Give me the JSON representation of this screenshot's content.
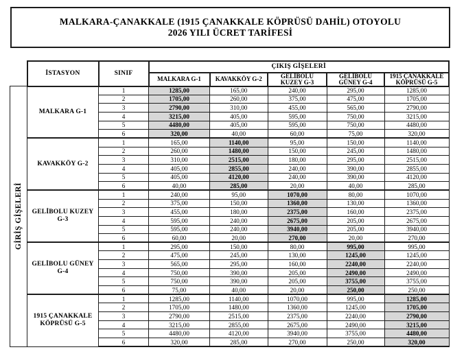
{
  "title": {
    "line1": "MALKARA-ÇANAKKALE (1915 ÇANAKKALE KÖPRÜSÜ DAHİL) OTOYOLU",
    "line2": "2026 YILI ÜCRET TARİFESİ"
  },
  "table": {
    "row_axis_label": "GİRİŞ GİŞELERİ",
    "station_col_header": "İSTASYON",
    "class_col_header": "SINIF",
    "exit_group_header": "ÇIKIŞ GİŞELERİ",
    "exit_col_headers": [
      "MALKARA G-1",
      "KAVAKKÖY G-2",
      "GELİBOLU\nKUZEY G-3",
      "GELİBOLU\nGÜNEY G-4",
      "1915 ÇANAKKALE\nKÖPRÜSÜ G-5"
    ],
    "classes": [
      "1",
      "2",
      "3",
      "4",
      "5",
      "6"
    ],
    "blocks": [
      {
        "station": "MALKARA G-1",
        "highlight_col": 0,
        "fares": [
          [
            "1285,00",
            "165,00",
            "240,00",
            "295,00",
            "1285,00"
          ],
          [
            "1705,00",
            "260,00",
            "375,00",
            "475,00",
            "1705,00"
          ],
          [
            "2790,00",
            "310,00",
            "455,00",
            "565,00",
            "2790,00"
          ],
          [
            "3215,00",
            "405,00",
            "595,00",
            "750,00",
            "3215,00"
          ],
          [
            "4480,00",
            "405,00",
            "595,00",
            "750,00",
            "4480,00"
          ],
          [
            "320,00",
            "40,00",
            "60,00",
            "75,00",
            "320,00"
          ]
        ]
      },
      {
        "station": "KAVAKKÖY G-2",
        "highlight_col": 1,
        "fares": [
          [
            "165,00",
            "1140,00",
            "95,00",
            "150,00",
            "1140,00"
          ],
          [
            "260,00",
            "1480,00",
            "150,00",
            "245,00",
            "1480,00"
          ],
          [
            "310,00",
            "2515,00",
            "180,00",
            "295,00",
            "2515,00"
          ],
          [
            "405,00",
            "2855,00",
            "240,00",
            "390,00",
            "2855,00"
          ],
          [
            "405,00",
            "4120,00",
            "240,00",
            "390,00",
            "4120,00"
          ],
          [
            "40,00",
            "285,00",
            "20,00",
            "40,00",
            "285,00"
          ]
        ]
      },
      {
        "station": "GELİBOLU KUZEY\nG-3",
        "highlight_col": 2,
        "fares": [
          [
            "240,00",
            "95,00",
            "1070,00",
            "80,00",
            "1070,00"
          ],
          [
            "375,00",
            "150,00",
            "1360,00",
            "130,00",
            "1360,00"
          ],
          [
            "455,00",
            "180,00",
            "2375,00",
            "160,00",
            "2375,00"
          ],
          [
            "595,00",
            "240,00",
            "2675,00",
            "205,00",
            "2675,00"
          ],
          [
            "595,00",
            "240,00",
            "3940,00",
            "205,00",
            "3940,00"
          ],
          [
            "60,00",
            "20,00",
            "270,00",
            "20,00",
            "270,00"
          ]
        ]
      },
      {
        "station": "GELİBOLU GÜNEY\nG-4",
        "highlight_col": 3,
        "fares": [
          [
            "295,00",
            "150,00",
            "80,00",
            "995,00",
            "995,00"
          ],
          [
            "475,00",
            "245,00",
            "130,00",
            "1245,00",
            "1245,00"
          ],
          [
            "565,00",
            "295,00",
            "160,00",
            "2240,00",
            "2240,00"
          ],
          [
            "750,00",
            "390,00",
            "205,00",
            "2490,00",
            "2490,00"
          ],
          [
            "750,00",
            "390,00",
            "205,00",
            "3755,00",
            "3755,00"
          ],
          [
            "75,00",
            "40,00",
            "20,00",
            "250,00",
            "250,00"
          ]
        ]
      },
      {
        "station": "1915 ÇANAKKALE\nKÖPRÜSÜ G-5",
        "highlight_col": 4,
        "fares": [
          [
            "1285,00",
            "1140,00",
            "1070,00",
            "995,00",
            "1285,00"
          ],
          [
            "1705,00",
            "1480,00",
            "1360,00",
            "1245,00",
            "1705,00"
          ],
          [
            "2790,00",
            "2515,00",
            "2375,00",
            "2240,00",
            "2790,00"
          ],
          [
            "3215,00",
            "2855,00",
            "2675,00",
            "2490,00",
            "3215,00"
          ],
          [
            "4480,00",
            "4120,00",
            "3940,00",
            "3755,00",
            "4480,00"
          ],
          [
            "320,00",
            "285,00",
            "270,00",
            "250,00",
            "320,00"
          ]
        ]
      }
    ]
  },
  "colors": {
    "highlight_bg": "#d7d7d7",
    "border": "#1c1c1c",
    "text": "#000000",
    "background": "#ffffff"
  }
}
